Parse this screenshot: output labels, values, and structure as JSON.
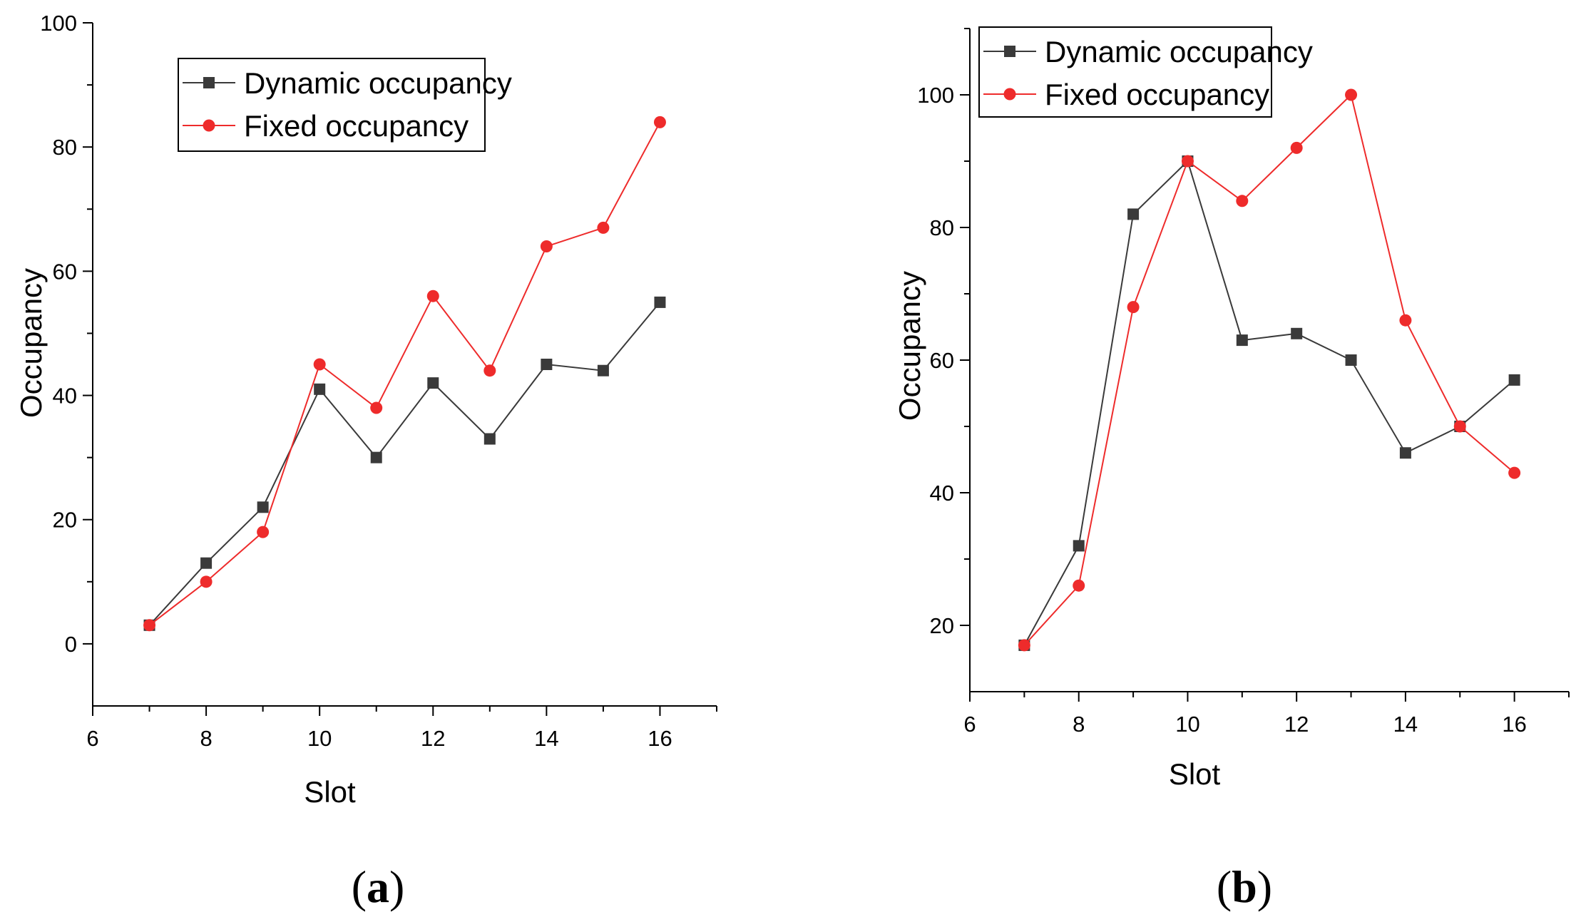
{
  "chart_data": [
    {
      "type": "line",
      "panel": "a",
      "panel_label": "(a)",
      "xlabel": "Slot",
      "ylabel": "Occupancy",
      "xlim": [
        6,
        17
      ],
      "ylim": [
        -10,
        100
      ],
      "xticks": [
        6,
        8,
        10,
        12,
        14,
        16
      ],
      "yticks": [
        0,
        20,
        40,
        60,
        80,
        100
      ],
      "legend_position": "top-left",
      "series": [
        {
          "name": "Dynamic occupancy",
          "color": "#3a3a3a",
          "marker": "square",
          "x": [
            7,
            8,
            9,
            10,
            11,
            12,
            13,
            14,
            15,
            16
          ],
          "y": [
            3,
            13,
            22,
            41,
            30,
            42,
            33,
            45,
            44,
            55
          ]
        },
        {
          "name": "Fixed occupancy",
          "color": "#ee2b2b",
          "marker": "circle",
          "x": [
            7,
            8,
            9,
            10,
            11,
            12,
            13,
            14,
            15,
            16
          ],
          "y": [
            3,
            10,
            18,
            45,
            38,
            56,
            44,
            64,
            67,
            84
          ]
        }
      ]
    },
    {
      "type": "line",
      "panel": "b",
      "panel_label": "(b)",
      "xlabel": "Slot",
      "ylabel": "Occupancy",
      "xlim": [
        6,
        17
      ],
      "ylim": [
        10,
        110
      ],
      "xticks": [
        6,
        8,
        10,
        12,
        14,
        16
      ],
      "yticks": [
        20,
        40,
        60,
        80,
        100
      ],
      "legend_position": "top-left",
      "series": [
        {
          "name": "Dynamic occupancy",
          "color": "#3a3a3a",
          "marker": "square",
          "x": [
            7,
            8,
            9,
            10,
            11,
            12,
            13,
            14,
            15,
            16
          ],
          "y": [
            17,
            32,
            82,
            90,
            63,
            64,
            60,
            46,
            50,
            57
          ]
        },
        {
          "name": "Fixed occupancy",
          "color": "#ee2b2b",
          "marker": "circle",
          "x": [
            7,
            8,
            9,
            10,
            11,
            12,
            13,
            14,
            15,
            16
          ],
          "y": [
            17,
            26,
            68,
            90,
            84,
            92,
            100,
            66,
            50,
            43
          ]
        }
      ]
    }
  ]
}
